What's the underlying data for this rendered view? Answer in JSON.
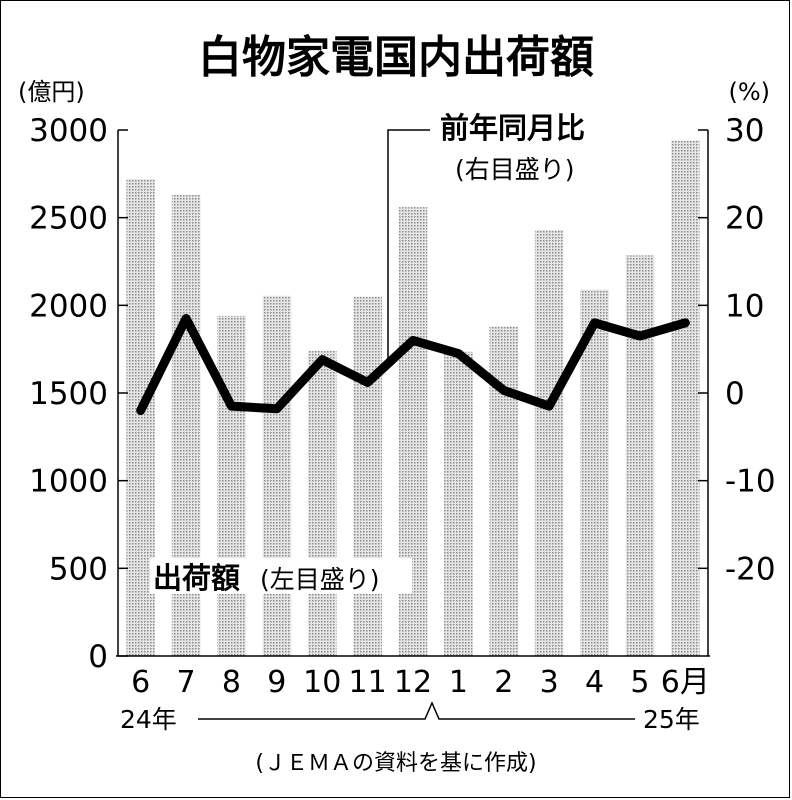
{
  "chart_data": {
    "type": "bar",
    "title": "白物家電国内出荷額",
    "categories": [
      "6",
      "7",
      "8",
      "9",
      "10",
      "11",
      "12",
      "1",
      "2",
      "3",
      "4",
      "5",
      "6月"
    ],
    "series": [
      {
        "name": "出荷額",
        "axis": "left",
        "type": "bar",
        "values": [
          2720,
          2630,
          1940,
          2055,
          1740,
          2050,
          2560,
          1735,
          1880,
          2430,
          2090,
          2285,
          2940
        ]
      },
      {
        "name": "前年同月比",
        "axis": "right",
        "type": "line",
        "values": [
          -2,
          8.5,
          -1.5,
          -1.8,
          3.8,
          1.2,
          6,
          4.5,
          0.3,
          -1.5,
          8,
          6.5,
          8
        ]
      }
    ],
    "ylim_left": [
      0,
      3000
    ],
    "ylim_right": [
      -30,
      30
    ],
    "yticks_left": [
      "0",
      "500",
      "1000",
      "1500",
      "2000",
      "2500",
      "3000"
    ],
    "yticks_right": [
      "-20",
      "-10",
      "0",
      "10",
      "20",
      "30"
    ],
    "ylabel_left": "(億円)",
    "ylabel_right": "(%)",
    "bar_label": "出荷額",
    "bar_label_note": "(左目盛り)",
    "line_label": "前年同月比",
    "line_label_note": "(右目盛り)",
    "year_start": "24年",
    "year_end": "25年",
    "source": "(ＪＥＭＡの資料を基に作成)",
    "colors": {
      "bar": "#bdbdbd",
      "line": "#000000"
    }
  }
}
